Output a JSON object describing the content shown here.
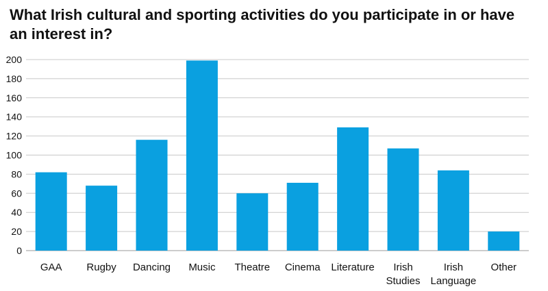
{
  "chart_data": {
    "type": "bar",
    "title": "What Irish cultural and sporting activities do you participate in or have an interest in?",
    "xlabel": "",
    "ylabel": "",
    "categories": [
      [
        "GAA"
      ],
      [
        "Rugby"
      ],
      [
        "Dancing"
      ],
      [
        "Music"
      ],
      [
        "Theatre"
      ],
      [
        "Cinema"
      ],
      [
        "Literature"
      ],
      [
        "Irish",
        "Studies"
      ],
      [
        "Irish",
        "Language"
      ],
      [
        "Other"
      ]
    ],
    "values": [
      82,
      68,
      116,
      199,
      60,
      71,
      129,
      107,
      84,
      20
    ],
    "ylim": [
      0,
      200
    ],
    "yticks": [
      0,
      20,
      40,
      60,
      80,
      100,
      120,
      140,
      160,
      180,
      200
    ],
    "grid": true,
    "legend": "none",
    "bar_color": "#0aa0e0",
    "grid_color": "#c8c8c8"
  }
}
